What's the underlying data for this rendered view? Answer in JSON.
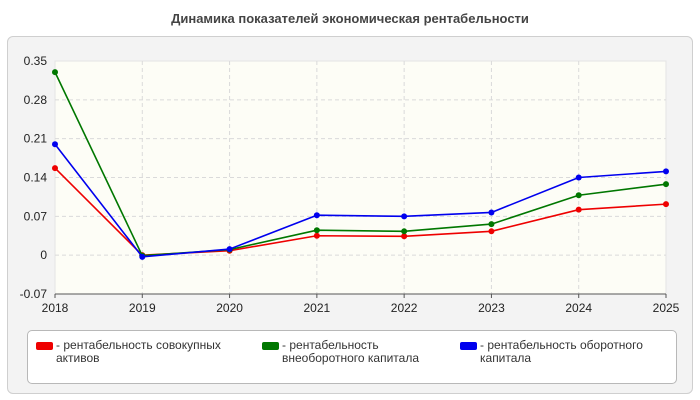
{
  "chart_data": {
    "type": "line",
    "title": "Динамика показателей экономическая рентабельности",
    "xlabel": "",
    "ylabel": "",
    "categories": [
      "2018",
      "2019",
      "2020",
      "2021",
      "2022",
      "2023",
      "2024",
      "2025"
    ],
    "ylim": [
      -0.07,
      0.35
    ],
    "yticks": [
      "-0.07",
      "0",
      "0.07",
      "0.14",
      "0.21",
      "0.28",
      "0.35"
    ],
    "grid": true,
    "legend_position": "bottom",
    "series": [
      {
        "name": "рентабельность совокупных активов",
        "color": "#ee0000",
        "values": [
          0.157,
          0.0,
          0.008,
          0.035,
          0.034,
          0.043,
          0.082,
          0.092
        ]
      },
      {
        "name": "рентабельность внеоборотного капитала",
        "color": "#007700",
        "values": [
          0.33,
          -0.001,
          0.01,
          0.045,
          0.043,
          0.056,
          0.108,
          0.128
        ]
      },
      {
        "name": "рентабельность оборотного капитала",
        "color": "#0000ee",
        "values": [
          0.2,
          -0.003,
          0.011,
          0.072,
          0.07,
          0.077,
          0.14,
          0.151
        ]
      }
    ]
  }
}
